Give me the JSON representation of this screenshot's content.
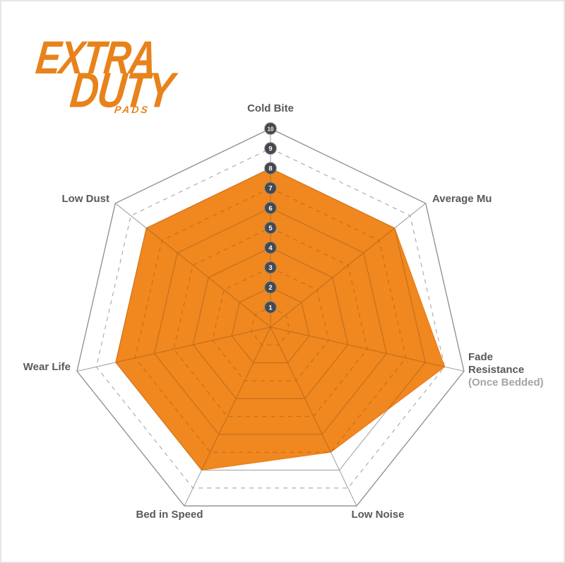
{
  "page": {
    "background": "#ffffff",
    "frame_color": "#e6e6e6"
  },
  "logo": {
    "line1": "EXTRA",
    "line2": "DUTY",
    "line3": "PADS",
    "color": "#e8821b"
  },
  "labels": {
    "cold_bite": "Cold Bite",
    "average_mu": "Average Mu",
    "fade_line1": "Fade",
    "fade_line2": "Resistance",
    "fade_line3": "(Once Bedded)",
    "low_noise": "Low Noise",
    "bed_in_speed": "Bed in Speed",
    "wear_life": "Wear Life",
    "low_dust": "Low Dust"
  },
  "chart_data": {
    "type": "radar",
    "title": "Extra Duty Pads performance radar",
    "categories": [
      "Cold Bite",
      "Average Mu",
      "Fade Resistance (Once Bedded)",
      "Low Noise",
      "Bed in Speed",
      "Wear Life",
      "Low Dust"
    ],
    "values": [
      8,
      8,
      9,
      7,
      8,
      8,
      8
    ],
    "scale": {
      "min": 1,
      "max": 10,
      "tick_labels": [
        "1",
        "2",
        "3",
        "4",
        "5",
        "6",
        "7",
        "8",
        "9",
        "10"
      ],
      "tick_axis": "Cold Bite"
    },
    "rings": 10,
    "grid_style": "even rings solid, odd rings dashed",
    "legend": "none",
    "colors": {
      "fill": "#f0871f",
      "fill_edge": "#e87a12",
      "grid": "#9e9e9e",
      "grid_outer": "#8d8d8d",
      "grid_inside_fill": "#bd6c1a",
      "tick_circle_fill": "#45484d",
      "tick_circle_stroke": "#85888c",
      "tick_text": "#ffffff"
    }
  }
}
